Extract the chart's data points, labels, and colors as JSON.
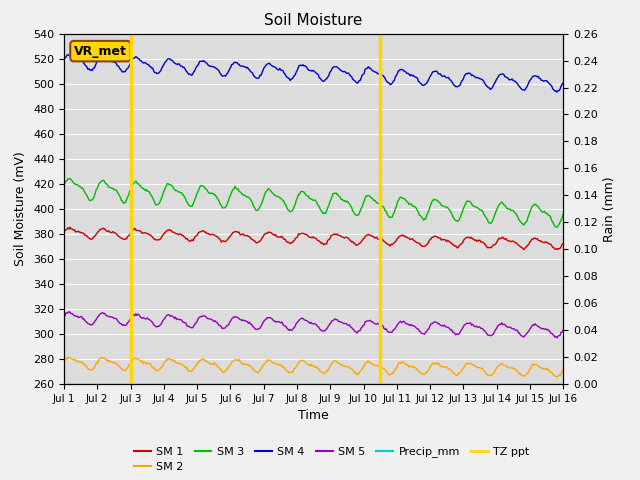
{
  "title": "Soil Moisture",
  "xlabel": "Time",
  "ylabel_left": "Soil Moisture (mV)",
  "ylabel_right": "Rain (mm)",
  "ylim_left": [
    260,
    540
  ],
  "ylim_right": [
    0.0,
    0.26
  ],
  "yticks_left": [
    260,
    280,
    300,
    320,
    340,
    360,
    380,
    400,
    420,
    440,
    460,
    480,
    500,
    520,
    540
  ],
  "yticks_right": [
    0.0,
    0.02,
    0.04,
    0.06,
    0.08,
    0.1,
    0.12,
    0.14,
    0.16,
    0.18,
    0.2,
    0.22,
    0.24,
    0.26
  ],
  "xtick_labels": [
    "Jul 1",
    "Jul 2",
    "Jul 3",
    "Jul 4",
    "Jul 5",
    "Jul 6",
    "Jul 7",
    "Jul 8",
    "Jul 9",
    "Jul 10",
    "Jul 11",
    "Jul 12",
    "Jul 13",
    "Jul 14",
    "Jul 15",
    "Jul 16"
  ],
  "vlines": [
    2.0,
    9.5
  ],
  "vline_color": "#FFD700",
  "annotation_text": "VR_met",
  "annotation_bg": "#FFD700",
  "annotation_border": "#8B4513",
  "bg_color": "#DCDCDC",
  "fig_bg_color": "#F0F0F0",
  "sm1_color": "#CC0000",
  "sm2_color": "#FFA500",
  "sm3_color": "#00BB00",
  "sm4_color": "#0000CC",
  "sm5_color": "#9900BB",
  "precip_color": "#00CCCC",
  "tz_color": "#FFD700",
  "n_points": 480,
  "sm1_base": 381,
  "sm1_amp": 3.5,
  "sm1_trend": -0.6,
  "sm1_freq": 1.0,
  "sm2_base": 277,
  "sm2_amp": 4.0,
  "sm2_trend": -0.4,
  "sm2_freq": 1.0,
  "sm3_base": 417,
  "sm3_amp": 7.0,
  "sm3_trend": -1.5,
  "sm3_freq": 1.0,
  "sm4_base": 518,
  "sm4_amp": 5.0,
  "sm4_trend": -1.2,
  "sm4_freq": 1.0,
  "sm5_base": 313,
  "sm5_amp": 4.0,
  "sm5_trend": -0.7,
  "sm5_freq": 1.0
}
